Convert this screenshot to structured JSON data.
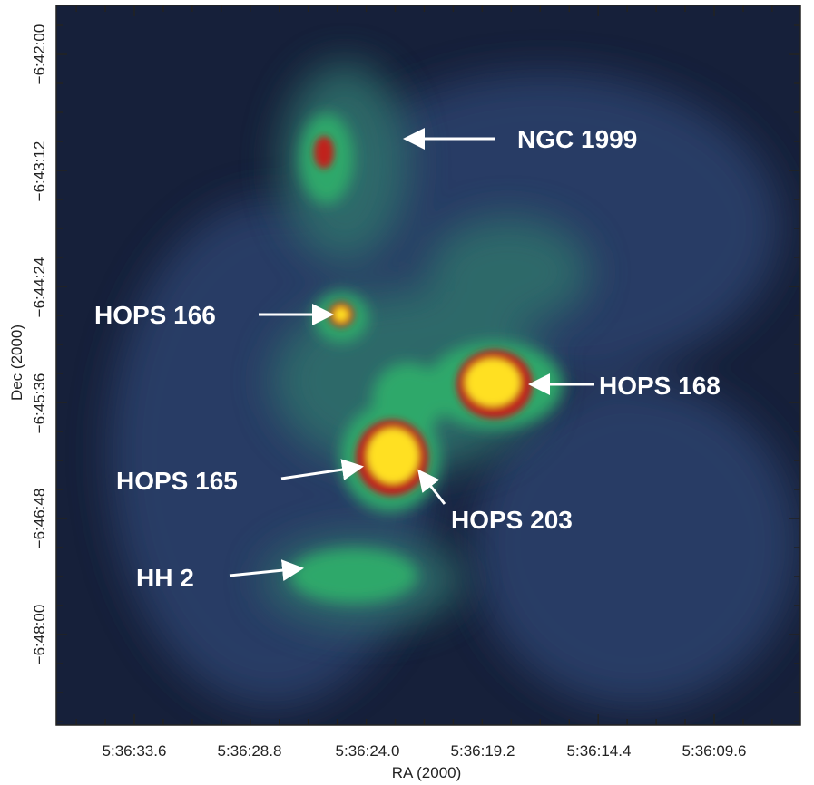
{
  "image": {
    "x_axis": {
      "label": "RA (2000)",
      "ticks": [
        "5:36:33.6",
        "5:36:28.8",
        "5:36:24.0",
        "5:36:19.2",
        "5:36:14.4",
        "5:36:09.6"
      ]
    },
    "y_axis": {
      "label": "Dec (2000)",
      "ticks": [
        "−6:42:00",
        "−6:43:12",
        "−6:44:24",
        "−6:45:36",
        "−6:46:48",
        "−6:48:00"
      ]
    },
    "annotations": [
      "NGC 1999",
      "HOPS 166",
      "HOPS 168",
      "HOPS 165",
      "HOPS 203",
      "HH 2"
    ]
  }
}
